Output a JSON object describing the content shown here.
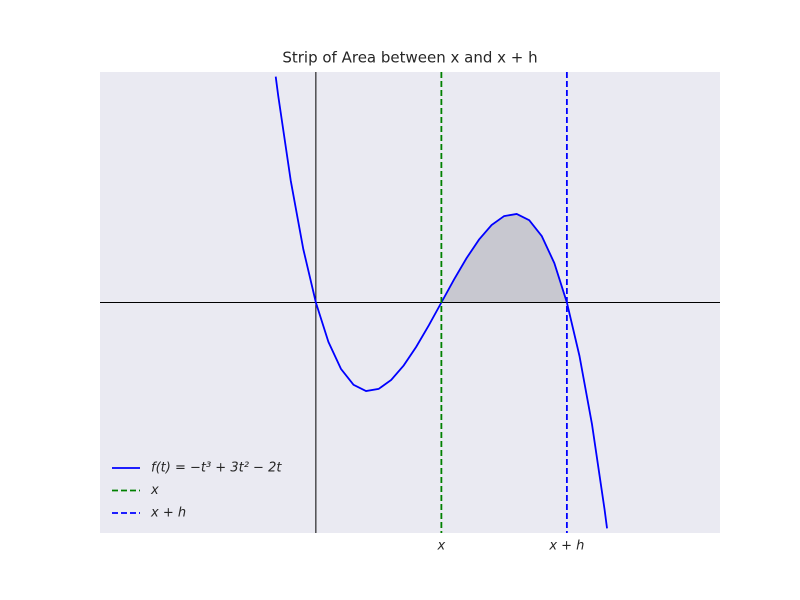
{
  "chart_data": {
    "type": "line",
    "title": "Strip of Area between x and x + h",
    "x": [
      -0.32,
      -0.3,
      -0.2,
      -0.1,
      0,
      0.1,
      0.2,
      0.3,
      0.4,
      0.5,
      0.6,
      0.7,
      0.8,
      0.9,
      1.0,
      1.1,
      1.2,
      1.3,
      1.4,
      1.5,
      1.6,
      1.7,
      1.8,
      1.9,
      2.0,
      2.1,
      2.2,
      2.3,
      2.32
    ],
    "series": [
      {
        "name": "f(t) = −t³ + 3t² − 2t",
        "color": "#0000ff",
        "values": [
          0.98,
          0.897,
          0.528,
          0.231,
          0,
          -0.171,
          -0.288,
          -0.357,
          -0.384,
          -0.375,
          -0.336,
          -0.273,
          -0.192,
          -0.099,
          0,
          0.099,
          0.192,
          0.273,
          0.336,
          0.375,
          0.384,
          0.357,
          0.288,
          0.171,
          0,
          -0.231,
          -0.528,
          -0.897,
          -0.98
        ]
      }
    ],
    "vlines": [
      {
        "name": "x",
        "color": "#008000",
        "x": 1
      },
      {
        "name": "x + h",
        "color": "#0000ff",
        "x": 2
      }
    ],
    "fill_between": [
      1,
      2
    ],
    "xlim": [
      -1.72,
      3.22
    ],
    "ylim": [
      -1,
      1
    ],
    "xticks": [
      {
        "value": 1,
        "label": "x"
      },
      {
        "value": 2,
        "label": "x + h"
      }
    ],
    "legend": "lower left"
  }
}
